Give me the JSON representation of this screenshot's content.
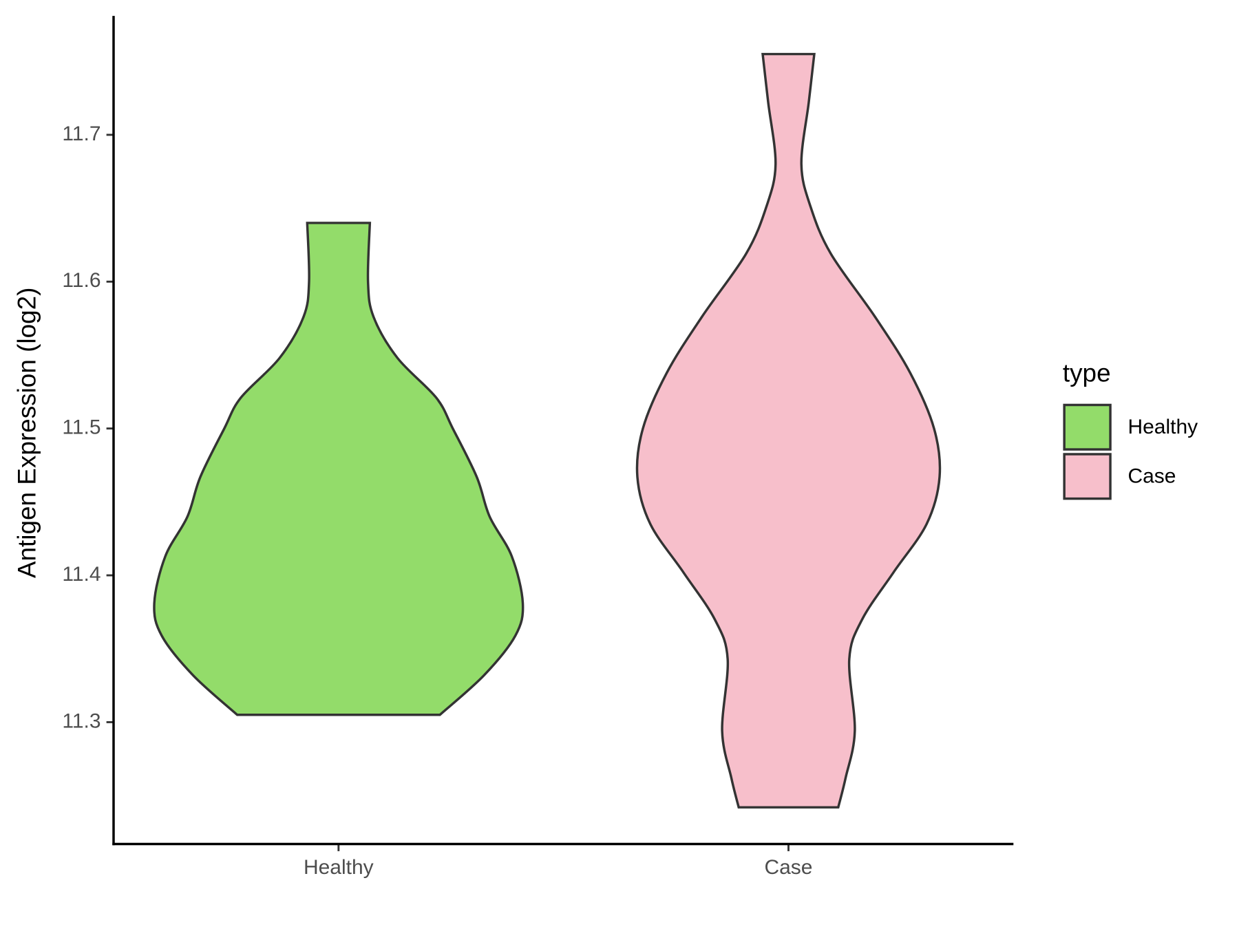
{
  "chart_data": {
    "type": "violin",
    "y_label": "Antigen Expression (log2)",
    "categories": [
      "Healthy",
      "Case"
    ],
    "ylim": [
      11.217,
      11.781
    ],
    "yticks": [
      11.3,
      11.4,
      11.5,
      11.6,
      11.7
    ],
    "legend_title": "type",
    "legend": "right",
    "series": [
      {
        "name": "Healthy",
        "color": "#93dc6a",
        "profile": {
          "y": [
            11.64,
            11.6,
            11.576,
            11.548,
            11.521,
            11.5,
            11.467,
            11.44,
            11.413,
            11.381,
            11.359,
            11.332,
            11.305
          ],
          "width": [
            0.17,
            0.16,
            0.19,
            0.32,
            0.53,
            0.62,
            0.75,
            0.82,
            0.94,
            1.0,
            0.96,
            0.79,
            0.55
          ]
        }
      },
      {
        "name": "Case",
        "color": "#f7bfcb",
        "profile": {
          "y": [
            11.755,
            11.722,
            11.68,
            11.651,
            11.619,
            11.576,
            11.538,
            11.5,
            11.467,
            11.435,
            11.402,
            11.37,
            11.343,
            11.294,
            11.262,
            11.242
          ],
          "width": [
            0.14,
            0.11,
            0.07,
            0.12,
            0.23,
            0.47,
            0.66,
            0.79,
            0.82,
            0.75,
            0.57,
            0.4,
            0.33,
            0.36,
            0.31,
            0.27
          ]
        }
      }
    ]
  }
}
